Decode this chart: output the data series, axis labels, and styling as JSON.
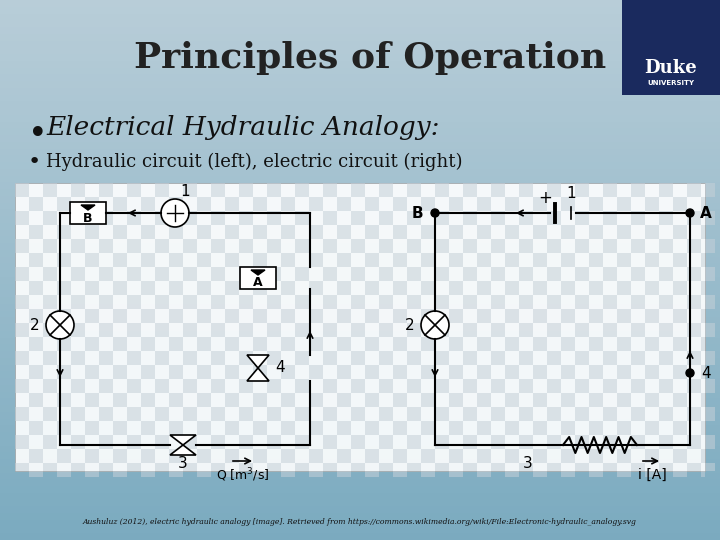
{
  "title": "Principles of Operation",
  "bullet1": "Electrical Hydraulic Analogy:",
  "bullet2": "Hydraulic circuit (left), electric circuit (right)",
  "citation": "Aushuluz (2012), electric hydraulic analogy [image]. Retrieved from https://commons.wikimedia.org/wiki/File:Electronic-hydraulic_analogy.svg",
  "bg_top_color": "#b8cdd8",
  "bg_bot_color": "#7aaabf",
  "dark_bar_color": "#1a2a5e",
  "title_color": "#222222",
  "text_color": "#111111",
  "figsize": [
    7.2,
    5.4
  ],
  "dpi": 100
}
